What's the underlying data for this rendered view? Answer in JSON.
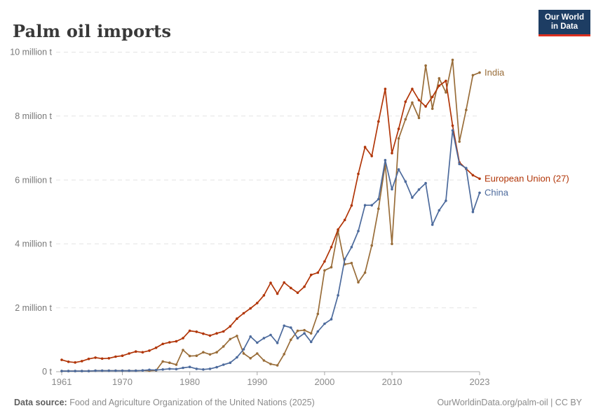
{
  "header": {
    "title": "Palm oil imports",
    "logo": {
      "line1": "Our World",
      "line2": "in Data",
      "bg_color": "#1d3d63",
      "accent_color": "#dc2f1f"
    }
  },
  "footer": {
    "source_label": "Data source:",
    "source_text": "Food and Agriculture Organization of the United Nations (2025)",
    "credit_text": "OurWorldinData.org/palm-oil | CC BY"
  },
  "chart_data": {
    "type": "line",
    "title": "Palm oil imports",
    "unit": "million tonnes",
    "grid": true,
    "legend_position": "end-of-line",
    "x": {
      "min": 1961,
      "max": 2023,
      "ticks": [
        1961,
        1970,
        1980,
        1990,
        2000,
        2010,
        2023
      ]
    },
    "y": {
      "min": 0,
      "max": 10,
      "ticks": [
        {
          "value": 0,
          "label": "0 t"
        },
        {
          "value": 2,
          "label": "2 million t"
        },
        {
          "value": 4,
          "label": "4 million t"
        },
        {
          "value": 6,
          "label": "6 million t"
        },
        {
          "value": 8,
          "label": "8 million t"
        },
        {
          "value": 10,
          "label": "10 million t"
        }
      ]
    },
    "years": [
      1961,
      1962,
      1963,
      1964,
      1965,
      1966,
      1967,
      1968,
      1969,
      1970,
      1971,
      1972,
      1973,
      1974,
      1975,
      1976,
      1977,
      1978,
      1979,
      1980,
      1981,
      1982,
      1983,
      1984,
      1985,
      1986,
      1987,
      1988,
      1989,
      1990,
      1991,
      1992,
      1993,
      1994,
      1995,
      1996,
      1997,
      1998,
      1999,
      2000,
      2001,
      2002,
      2003,
      2004,
      2005,
      2006,
      2007,
      2008,
      2009,
      2010,
      2011,
      2012,
      2013,
      2014,
      2015,
      2016,
      2017,
      2018,
      2019,
      2020,
      2021,
      2022,
      2023
    ],
    "series": [
      {
        "name": "India",
        "color": "#996D39",
        "values": [
          0.02,
          0.02,
          0.02,
          0.02,
          0.02,
          0.03,
          0.03,
          0.03,
          0.03,
          0.03,
          0.03,
          0.03,
          0.04,
          0.03,
          0.04,
          0.32,
          0.28,
          0.22,
          0.68,
          0.49,
          0.5,
          0.61,
          0.54,
          0.61,
          0.79,
          1.02,
          1.12,
          0.57,
          0.42,
          0.57,
          0.35,
          0.24,
          0.2,
          0.55,
          1.0,
          1.28,
          1.3,
          1.2,
          1.81,
          3.17,
          3.27,
          4.4,
          3.36,
          3.4,
          2.8,
          3.1,
          3.95,
          5.1,
          6.5,
          4.0,
          7.3,
          7.9,
          8.42,
          7.94,
          9.58,
          8.23,
          9.18,
          8.74,
          9.76,
          7.2,
          8.19,
          9.28,
          9.36
        ]
      },
      {
        "name": "European Union (27)",
        "color": "#B13507",
        "values": [
          0.37,
          0.31,
          0.29,
          0.33,
          0.4,
          0.44,
          0.41,
          0.42,
          0.47,
          0.5,
          0.57,
          0.63,
          0.61,
          0.66,
          0.75,
          0.87,
          0.92,
          0.95,
          1.05,
          1.28,
          1.25,
          1.19,
          1.13,
          1.2,
          1.26,
          1.42,
          1.66,
          1.83,
          1.98,
          2.15,
          2.39,
          2.78,
          2.44,
          2.79,
          2.62,
          2.47,
          2.66,
          3.03,
          3.1,
          3.45,
          3.9,
          4.45,
          4.75,
          5.2,
          6.19,
          7.03,
          6.75,
          7.83,
          8.85,
          6.84,
          7.6,
          8.45,
          8.85,
          8.5,
          8.3,
          8.6,
          8.95,
          9.1,
          7.7,
          6.55,
          6.35,
          6.15,
          6.04
        ]
      },
      {
        "name": "China",
        "color": "#4C6A9C",
        "values": [
          0.02,
          0.02,
          0.02,
          0.02,
          0.02,
          0.03,
          0.03,
          0.03,
          0.03,
          0.03,
          0.03,
          0.03,
          0.04,
          0.06,
          0.05,
          0.07,
          0.09,
          0.08,
          0.12,
          0.15,
          0.09,
          0.07,
          0.09,
          0.14,
          0.22,
          0.28,
          0.45,
          0.7,
          1.1,
          0.91,
          1.05,
          1.15,
          0.9,
          1.44,
          1.38,
          1.05,
          1.2,
          0.93,
          1.26,
          1.5,
          1.64,
          2.39,
          3.52,
          3.9,
          4.4,
          5.21,
          5.21,
          5.4,
          6.62,
          5.71,
          6.33,
          5.95,
          5.45,
          5.7,
          5.9,
          4.6,
          5.05,
          5.35,
          7.55,
          6.5,
          6.37,
          5.0,
          5.6
        ]
      }
    ],
    "style": {
      "grid_color": "#e3e3e3",
      "axis_color": "#a8a8a8",
      "y_label_color": "#787878",
      "x_label_color": "#8a8a8a"
    }
  }
}
